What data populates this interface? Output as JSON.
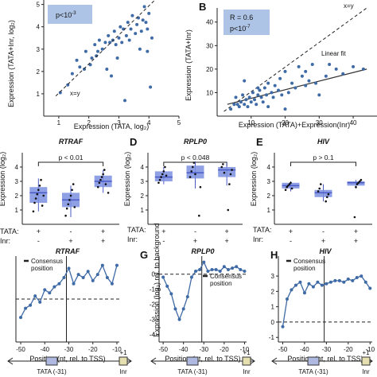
{
  "colors": {
    "point": "#3e6aa6",
    "box_fill": "#7d8fe0",
    "box_dark": "#4a5bc6",
    "stat_box": "#aec4e6",
    "track_box": "#aeb8e0",
    "inr_box": "#e6e0b0",
    "fit_line": "#333333"
  },
  "chart_data": [
    {
      "type": "scatter",
      "panel_letter": "",
      "stat_label": "p<10",
      "stat_sup": "-3",
      "diag_label": "x=y",
      "xlabel": "Expression (TATA, log₂)",
      "ylabel": "Expression (TATA+Inr, log₂)",
      "xlim": [
        0.5,
        5
      ],
      "ylim": [
        0,
        5.2
      ],
      "xticks": [
        "1",
        "2",
        "3",
        "4",
        "5"
      ],
      "yticks": [
        "1",
        "2",
        "3",
        "4",
        "5"
      ],
      "points": [
        [
          1.05,
          1.05
        ],
        [
          1.3,
          1.4
        ],
        [
          1.45,
          1.9
        ],
        [
          1.6,
          2.5
        ],
        [
          1.7,
          2.2
        ],
        [
          1.85,
          2.1
        ],
        [
          1.9,
          2.9
        ],
        [
          2.05,
          2.3
        ],
        [
          2.1,
          2.6
        ],
        [
          2.2,
          3.2
        ],
        [
          2.25,
          2.7
        ],
        [
          2.3,
          2.9
        ],
        [
          2.35,
          3.4
        ],
        [
          2.45,
          3.0
        ],
        [
          2.55,
          3.3
        ],
        [
          2.6,
          2.1
        ],
        [
          2.65,
          3.6
        ],
        [
          2.7,
          3.3
        ],
        [
          2.75,
          1.8
        ],
        [
          2.8,
          3.4
        ],
        [
          2.85,
          3.8
        ],
        [
          2.9,
          3.2
        ],
        [
          2.95,
          2.6
        ],
        [
          3.0,
          3.5
        ],
        [
          3.05,
          4.0
        ],
        [
          3.1,
          3.3
        ],
        [
          3.15,
          3.9
        ],
        [
          3.2,
          0.7
        ],
        [
          3.25,
          3.6
        ],
        [
          3.3,
          4.2
        ],
        [
          3.35,
          3.4
        ],
        [
          3.4,
          3.9
        ],
        [
          3.45,
          4.5
        ],
        [
          3.55,
          3.7
        ],
        [
          3.6,
          4.1
        ],
        [
          3.65,
          4.4
        ],
        [
          3.7,
          3.0
        ],
        [
          3.75,
          3.8
        ],
        [
          3.8,
          4.3
        ],
        [
          3.85,
          4.9
        ],
        [
          3.9,
          4.2
        ],
        [
          3.95,
          3.9
        ],
        [
          4.0,
          4.6
        ],
        [
          4.05,
          1.3
        ],
        [
          4.1,
          3.5
        ],
        [
          3.95,
          2.9
        ]
      ]
    },
    {
      "type": "scatter",
      "panel_letter": "B",
      "stat_r": "R = 0.6",
      "stat_p": "p<10",
      "stat_sup": "-7",
      "diag_label": "x=y",
      "fit_label": "Linear fit",
      "xlabel": "Expression (TATA)+Expression(Inr)",
      "ylabel": "Expression (TATA+Inr)",
      "xlim": [
        0,
        47
      ],
      "ylim": [
        0,
        46
      ],
      "xticks": [
        "10",
        "20",
        "30",
        "40"
      ],
      "yticks": [
        "10",
        "20",
        "30",
        "40"
      ],
      "fit": [
        [
          3,
          5
        ],
        [
          44,
          20
        ]
      ],
      "points": [
        [
          4,
          3
        ],
        [
          5,
          5
        ],
        [
          5.5,
          8
        ],
        [
          6,
          5
        ],
        [
          6.5,
          4
        ],
        [
          7,
          6
        ],
        [
          7.5,
          9
        ],
        [
          8,
          5
        ],
        [
          8.5,
          7
        ],
        [
          9,
          4
        ],
        [
          9.5,
          8
        ],
        [
          10,
          6
        ],
        [
          10.5,
          10
        ],
        [
          11,
          7
        ],
        [
          11.5,
          5
        ],
        [
          12,
          9
        ],
        [
          12.5,
          11
        ],
        [
          13,
          8
        ],
        [
          13.5,
          6
        ],
        [
          14,
          12
        ],
        [
          14.5,
          9
        ],
        [
          15,
          14
        ],
        [
          16,
          10
        ],
        [
          16.5,
          8
        ],
        [
          17,
          13
        ],
        [
          18,
          11
        ],
        [
          18.5,
          16
        ],
        [
          19,
          9
        ],
        [
          20,
          19
        ],
        [
          21,
          10
        ],
        [
          22,
          14
        ],
        [
          23,
          12
        ],
        [
          24,
          21
        ],
        [
          25,
          17
        ],
        [
          26,
          13
        ],
        [
          27,
          15
        ],
        [
          28,
          22
        ],
        [
          29,
          14
        ],
        [
          30,
          9
        ],
        [
          32,
          17
        ],
        [
          33,
          22
        ],
        [
          35,
          20
        ],
        [
          37,
          18
        ],
        [
          40,
          21
        ],
        [
          43,
          20
        ],
        [
          8,
          15
        ],
        [
          12,
          12
        ],
        [
          15,
          4
        ],
        [
          20,
          3
        ],
        [
          26,
          19
        ]
      ]
    },
    {
      "type": "box",
      "panel_letter": "",
      "title": "RTRAF",
      "pval": "p < 0.01",
      "ylabel": "Expression (log₂)",
      "ylim": [
        0,
        5
      ],
      "yticks": [
        "1",
        "2",
        "3",
        "4"
      ],
      "boxes": [
        {
          "q1": 1.5,
          "median": 2.2,
          "q3": 2.6,
          "whislo": 0.9,
          "whishi": 3.2
        },
        {
          "q1": 1.2,
          "median": 1.7,
          "q3": 2.2,
          "whislo": 0.5,
          "whishi": 2.7
        },
        {
          "q1": 2.6,
          "median": 3.0,
          "q3": 3.4,
          "whislo": 2.2,
          "whishi": 3.8
        }
      ],
      "points": [
        [
          1,
          0.9
        ],
        [
          1,
          1.5
        ],
        [
          1,
          1.8
        ],
        [
          1,
          2.1
        ],
        [
          1,
          2.4
        ],
        [
          1,
          2.7
        ],
        [
          1,
          3.1
        ],
        [
          1,
          1.3
        ],
        [
          1,
          2.0
        ],
        [
          2,
          0.6
        ],
        [
          2,
          1.1
        ],
        [
          2,
          1.4
        ],
        [
          2,
          1.7
        ],
        [
          2,
          2.0
        ],
        [
          2,
          2.4
        ],
        [
          2,
          2.8
        ],
        [
          2,
          1.2
        ],
        [
          3,
          2.2
        ],
        [
          3,
          2.6
        ],
        [
          3,
          2.9
        ],
        [
          3,
          3.1
        ],
        [
          3,
          3.3
        ],
        [
          3,
          3.5
        ],
        [
          3,
          3.8
        ],
        [
          3,
          2.8
        ]
      ]
    },
    {
      "type": "box",
      "panel_letter": "D",
      "title": "RPLP0",
      "pval": "p < 0.048",
      "ylabel": "Expression (log₂)",
      "ylim": [
        0,
        5
      ],
      "yticks": [
        "1",
        "2",
        "3",
        "4"
      ],
      "boxes": [
        {
          "q1": 3.0,
          "median": 3.3,
          "q3": 3.7,
          "whislo": 2.8,
          "whishi": 4.0
        },
        {
          "q1": 3.2,
          "median": 3.6,
          "q3": 4.1,
          "whislo": 2.5,
          "whishi": 4.4
        },
        {
          "q1": 3.3,
          "median": 3.8,
          "q3": 4.0,
          "whislo": 2.7,
          "whishi": 4.3
        }
      ],
      "points": [
        [
          1,
          2.9
        ],
        [
          1,
          3.1
        ],
        [
          1,
          3.3
        ],
        [
          1,
          3.5
        ],
        [
          1,
          3.7
        ],
        [
          1,
          4.0
        ],
        [
          1,
          3.4
        ],
        [
          2,
          0.6
        ],
        [
          2,
          2.6
        ],
        [
          2,
          3.3
        ],
        [
          2,
          3.7
        ],
        [
          2,
          4.0
        ],
        [
          2,
          4.3
        ],
        [
          2,
          3.5
        ],
        [
          3,
          1.0
        ],
        [
          3,
          2.8
        ],
        [
          3,
          3.5
        ],
        [
          3,
          3.8
        ],
        [
          3,
          4.0
        ],
        [
          3,
          4.2
        ],
        [
          3,
          3.6
        ]
      ]
    },
    {
      "type": "box",
      "panel_letter": "E",
      "title": "HIV",
      "pval": "p > 0.1",
      "ylabel": "Expression (log₂)",
      "ylim": [
        0,
        5
      ],
      "yticks": [
        "1",
        "2",
        "3",
        "4"
      ],
      "boxes": [
        {
          "q1": 2.5,
          "median": 2.7,
          "q3": 2.9,
          "whislo": 2.3,
          "whishi": 3.0
        },
        {
          "q1": 1.9,
          "median": 2.2,
          "q3": 2.4,
          "whislo": 1.6,
          "whishi": 2.8
        },
        {
          "q1": 2.7,
          "median": 2.9,
          "q3": 3.0,
          "whislo": 2.5,
          "whishi": 3.1
        }
      ],
      "points": [
        [
          1,
          2.4
        ],
        [
          1,
          2.6
        ],
        [
          1,
          2.7
        ],
        [
          1,
          2.8
        ],
        [
          1,
          2.9
        ],
        [
          1,
          2.5
        ],
        [
          2,
          1.6
        ],
        [
          2,
          1.9
        ],
        [
          2,
          2.1
        ],
        [
          2,
          2.3
        ],
        [
          2,
          2.5
        ],
        [
          2,
          2.8
        ],
        [
          3,
          0.5
        ],
        [
          3,
          2.6
        ],
        [
          3,
          2.8
        ],
        [
          3,
          2.9
        ],
        [
          3,
          3.0
        ],
        [
          3,
          3.1
        ]
      ]
    },
    {
      "type": "line",
      "panel_letter": "",
      "title": "RTRAF",
      "legend": "Consensus position",
      "ylabel": "Expression (log₂) rel. to background",
      "xlim": [
        -52,
        -9
      ],
      "ylim": [
        -1.4,
        1.4
      ],
      "consensus_x": -31,
      "x": [
        -50,
        -48,
        -46,
        -44,
        -42,
        -40,
        -38,
        -36,
        -34,
        -32,
        -30,
        -28,
        -26,
        -24,
        -22,
        -20,
        -18,
        -16,
        -14,
        -12,
        -10
      ],
      "y": [
        -0.6,
        -0.3,
        -0.2,
        0.1,
        -0.1,
        0.3,
        0.2,
        0.4,
        0.5,
        0.7,
        1.0,
        0.5,
        0.8,
        0.7,
        0.9,
        0.6,
        0.8,
        1.1,
        0.7,
        0.5,
        1.1
      ]
    },
    {
      "type": "line",
      "panel_letter": "G",
      "title": "RPLP0",
      "legend": "Consensus position",
      "ylabel": "Expression (log₂) rel. to background",
      "xlim": [
        -52,
        -9
      ],
      "ylim": [
        -4.5,
        1.2
      ],
      "yticks": [
        "0",
        "-1",
        "-2",
        "-3",
        "-4"
      ],
      "consensus_x": -31,
      "x": [
        -50,
        -48,
        -46,
        -44,
        -42,
        -40,
        -38,
        -36,
        -34,
        -32,
        -30,
        -28,
        -26,
        -24,
        -22,
        -20,
        -18,
        -16,
        -14,
        -12,
        -10
      ],
      "y": [
        -0.2,
        -0.8,
        -1.3,
        -2.3,
        -3.0,
        -2.3,
        -1.5,
        -0.2,
        0.2,
        0.3,
        0.8,
        0.2,
        0.3,
        0.3,
        0.2,
        0.5,
        0.3,
        0.4,
        0.5,
        0.3,
        0.2
      ]
    },
    {
      "type": "line",
      "panel_letter": "H",
      "title": "HIV",
      "legend": "Consensus position",
      "ylabel": "",
      "xlim": [
        -52,
        -9
      ],
      "ylim": [
        -1.3,
        4.3
      ],
      "yticks": [
        "3",
        "2",
        "1",
        "0",
        "-1"
      ],
      "consensus_x": -31,
      "x": [
        -50,
        -48,
        -46,
        -44,
        -42,
        -40,
        -38,
        -36,
        -34,
        -32,
        -30,
        -28,
        -26,
        -24,
        -22,
        -20,
        -18,
        -16,
        -14,
        -12,
        -10
      ],
      "y": [
        -0.3,
        1.5,
        2.1,
        2.4,
        2.6,
        1.9,
        2.5,
        2.3,
        2.6,
        2.4,
        2.5,
        2.6,
        2.7,
        2.7,
        2.6,
        2.8,
        2.7,
        2.9,
        3.0,
        2.6,
        2.2
      ]
    }
  ],
  "boxplot_categories": {
    "tata_label": "TATA:",
    "inr_label": "Inr:",
    "tata": [
      "+",
      "-",
      "+"
    ],
    "inr": [
      "-",
      "+",
      "+"
    ]
  },
  "line_axis": {
    "xlabel": "Position (nt, rel. to TSS)",
    "xticks": [
      "-50",
      "-40",
      "-30",
      "-20",
      "-10"
    ]
  },
  "tracks": {
    "tata_label": "TATA (-31)",
    "inr_label": "Inr",
    "inr_pos": "+1"
  }
}
